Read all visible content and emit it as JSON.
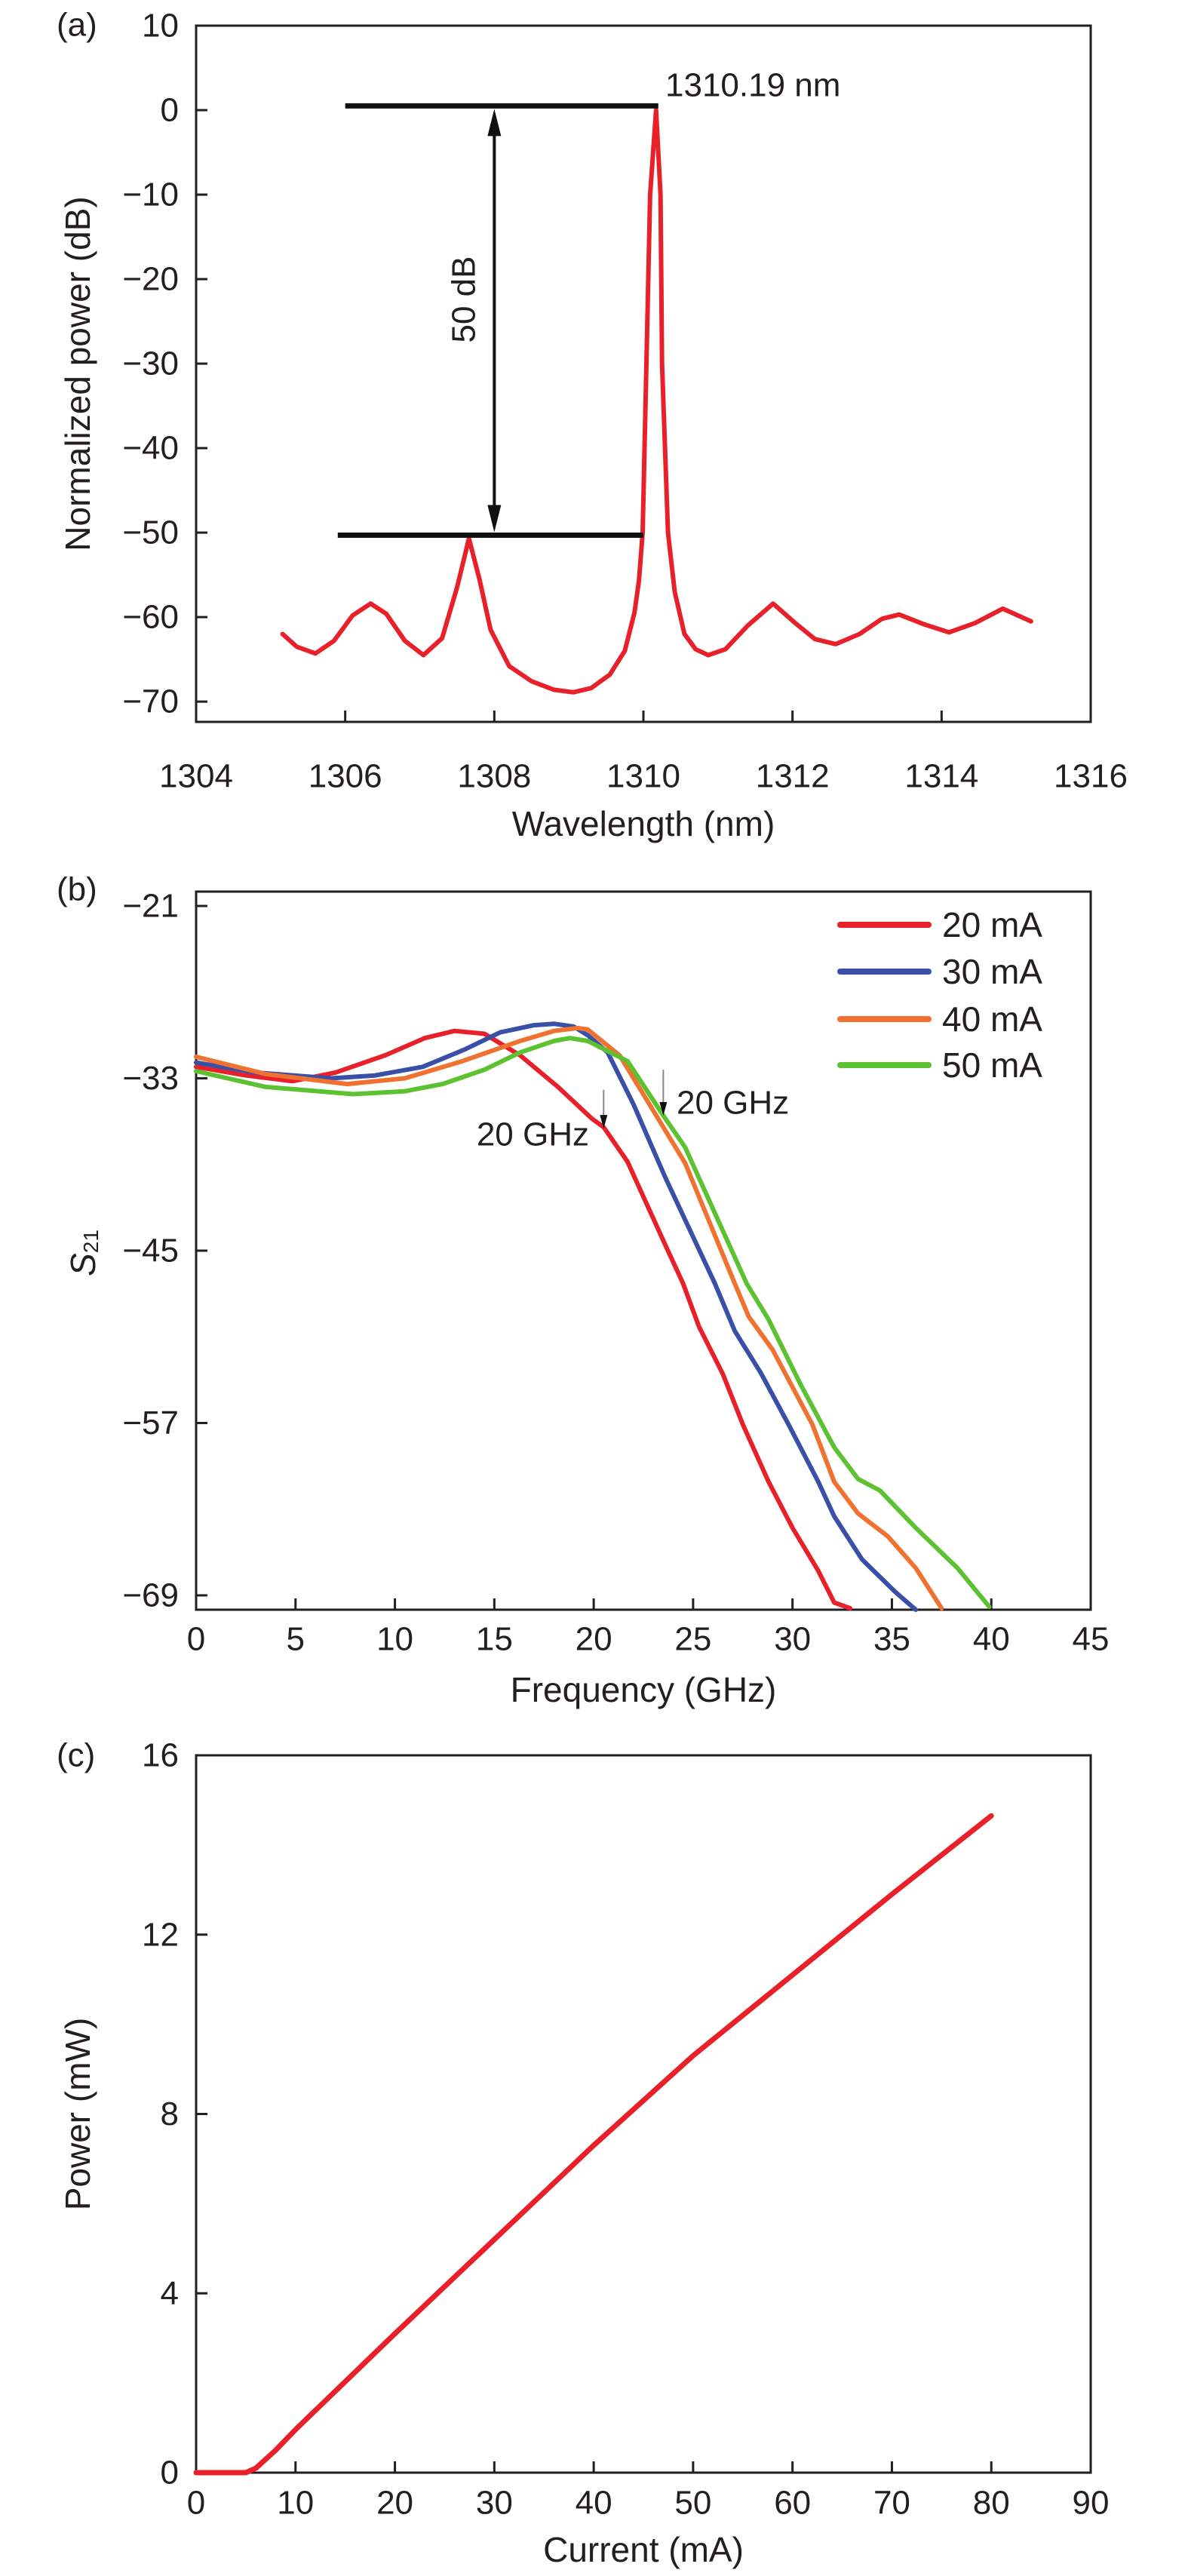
{
  "chart_data": [
    {
      "type": "line",
      "panel_label": "(a)",
      "xlabel": "Wavelength (nm)",
      "ylabel": "Normalized power (dB)",
      "xlim": [
        1304,
        1316
      ],
      "ylim": [
        -72.4,
        10
      ],
      "xticks": [
        1304,
        1306,
        1308,
        1310,
        1312,
        1314,
        1316
      ],
      "xtick_labels": [
        "1304",
        "1306",
        "1308",
        "1310",
        "1312",
        "1314",
        "1316"
      ],
      "yticks": [
        10,
        0,
        -10,
        -20,
        -30,
        -40,
        -50,
        -60,
        -70
      ],
      "ytick_labels": [
        "10",
        "0",
        "−10",
        "−20",
        "−30",
        "−40",
        "−50",
        "−60",
        "−70"
      ],
      "grid": false,
      "series": [
        {
          "color": "#e8202a",
          "points": [
            [
              1305.16,
              -62
            ],
            [
              1305.35,
              -63.5
            ],
            [
              1305.6,
              -64.3
            ],
            [
              1305.85,
              -62.8
            ],
            [
              1306.1,
              -59.8
            ],
            [
              1306.34,
              -58.4
            ],
            [
              1306.55,
              -59.6
            ],
            [
              1306.8,
              -62.8
            ],
            [
              1307.05,
              -64.5
            ],
            [
              1307.3,
              -62.5
            ],
            [
              1307.5,
              -56.5
            ],
            [
              1307.66,
              -50.7
            ],
            [
              1307.8,
              -55.5
            ],
            [
              1307.95,
              -61.5
            ],
            [
              1308.2,
              -65.8
            ],
            [
              1308.5,
              -67.6
            ],
            [
              1308.8,
              -68.6
            ],
            [
              1309.06,
              -68.9
            ],
            [
              1309.3,
              -68.4
            ],
            [
              1309.55,
              -66.8
            ],
            [
              1309.75,
              -64
            ],
            [
              1309.88,
              -59.5
            ],
            [
              1309.94,
              -55.7
            ],
            [
              1309.99,
              -50
            ],
            [
              1310.04,
              -30
            ],
            [
              1310.09,
              -10
            ],
            [
              1310.17,
              0
            ],
            [
              1310.23,
              -10
            ],
            [
              1310.25,
              -30
            ],
            [
              1310.33,
              -50
            ],
            [
              1310.42,
              -57
            ],
            [
              1310.55,
              -62
            ],
            [
              1310.7,
              -63.8
            ],
            [
              1310.87,
              -64.5
            ],
            [
              1311.1,
              -63.8
            ],
            [
              1311.4,
              -61
            ],
            [
              1311.74,
              -58.4
            ],
            [
              1312.05,
              -60.8
            ],
            [
              1312.3,
              -62.6
            ],
            [
              1312.58,
              -63.2
            ],
            [
              1312.9,
              -62
            ],
            [
              1313.2,
              -60.2
            ],
            [
              1313.43,
              -59.7
            ],
            [
              1313.75,
              -60.8
            ],
            [
              1314.1,
              -61.8
            ],
            [
              1314.45,
              -60.7
            ],
            [
              1314.82,
              -59
            ],
            [
              1315.2,
              -60.5
            ]
          ]
        }
      ],
      "annotations": {
        "peak_label": "1310.19 nm",
        "smsr_label": "50 dB",
        "ref_lines": [
          {
            "y": 0.5,
            "x": [
              1306,
              1310.2
            ]
          },
          {
            "y": -50.3,
            "x": [
              1305.9,
              1310.0
            ]
          }
        ],
        "arrow_x": 1308
      }
    },
    {
      "type": "line",
      "panel_label": "(b)",
      "xlabel": "Frequency (GHz)",
      "ylabel": "S",
      "ylabel_sub": "21",
      "xlim": [
        0,
        45
      ],
      "ylim": [
        -70,
        -20
      ],
      "xticks": [
        0,
        5,
        10,
        15,
        20,
        25,
        30,
        35,
        40,
        45
      ],
      "xtick_labels": [
        "0",
        "5",
        "10",
        "15",
        "20",
        "25",
        "30",
        "35",
        "40",
        "45"
      ],
      "yticks": [
        -21,
        -33,
        -45,
        -57,
        -69
      ],
      "ytick_labels": [
        "−21",
        "−33",
        "−45",
        "−57",
        "−69"
      ],
      "grid": false,
      "legend_position": "top-right",
      "series": [
        {
          "name": "20 mA",
          "color": "#e8202a",
          "points": [
            [
              0,
              -32.2
            ],
            [
              2.5,
              -32.8
            ],
            [
              4.85,
              -33.2
            ],
            [
              7,
              -32.6
            ],
            [
              9.5,
              -31.4
            ],
            [
              11.5,
              -30.2
            ],
            [
              13,
              -29.7
            ],
            [
              14.5,
              -29.9
            ],
            [
              16.3,
              -31.4
            ],
            [
              18.2,
              -33.6
            ],
            [
              19.9,
              -35.8
            ],
            [
              20.5,
              -36.4
            ],
            [
              21.7,
              -38.8
            ],
            [
              23.6,
              -44.6
            ],
            [
              24.5,
              -47.3
            ],
            [
              25.3,
              -50.3
            ],
            [
              26.5,
              -53.6
            ],
            [
              27.5,
              -57.1
            ],
            [
              28.8,
              -61.1
            ],
            [
              30,
              -64.3
            ],
            [
              31.3,
              -67.3
            ],
            [
              32.1,
              -69.5
            ],
            [
              32.9,
              -69.9
            ]
          ]
        },
        {
          "name": "30 mA",
          "color": "#3a4fa8",
          "points": [
            [
              0,
              -31.9
            ],
            [
              3,
              -32.6
            ],
            [
              6.8,
              -33
            ],
            [
              9,
              -32.8
            ],
            [
              11.4,
              -32.2
            ],
            [
              13.5,
              -31
            ],
            [
              15.3,
              -29.8
            ],
            [
              17,
              -29.3
            ],
            [
              18,
              -29.2
            ],
            [
              19,
              -29.4
            ],
            [
              19.7,
              -30
            ],
            [
              20.7,
              -31.2
            ],
            [
              22,
              -34.8
            ],
            [
              23.6,
              -39.9
            ],
            [
              26.1,
              -47.3
            ],
            [
              27.1,
              -50.6
            ],
            [
              28.4,
              -53.5
            ],
            [
              29.8,
              -57.1
            ],
            [
              31.3,
              -61.1
            ],
            [
              32.1,
              -63.5
            ],
            [
              33.5,
              -66.5
            ],
            [
              35.2,
              -68.8
            ],
            [
              36.2,
              -70
            ]
          ]
        },
        {
          "name": "40 mA",
          "color": "#f07230",
          "points": [
            [
              0,
              -31.5
            ],
            [
              3.5,
              -32.7
            ],
            [
              7.6,
              -33.4
            ],
            [
              10.5,
              -33
            ],
            [
              13.4,
              -31.8
            ],
            [
              16.3,
              -30.4
            ],
            [
              18,
              -29.7
            ],
            [
              19.2,
              -29.5
            ],
            [
              19.7,
              -29.6
            ],
            [
              21.3,
              -31.4
            ],
            [
              22.8,
              -34.8
            ],
            [
              24.6,
              -38.9
            ],
            [
              27.1,
              -47.3
            ],
            [
              27.8,
              -49.6
            ],
            [
              29,
              -51.9
            ],
            [
              31,
              -57.1
            ],
            [
              32.1,
              -61.1
            ],
            [
              33.3,
              -63.3
            ],
            [
              34.8,
              -64.9
            ],
            [
              36.2,
              -67.1
            ],
            [
              37.5,
              -69.9
            ]
          ]
        },
        {
          "name": "50 mA",
          "color": "#5cc232",
          "points": [
            [
              0,
              -32.5
            ],
            [
              3.5,
              -33.6
            ],
            [
              7.9,
              -34.1
            ],
            [
              10.5,
              -33.9
            ],
            [
              12.4,
              -33.4
            ],
            [
              14.5,
              -32.4
            ],
            [
              16.3,
              -31.2
            ],
            [
              18,
              -30.4
            ],
            [
              18.8,
              -30.2
            ],
            [
              19.7,
              -30.4
            ],
            [
              21.7,
              -31.8
            ],
            [
              23.6,
              -35.8
            ],
            [
              24.6,
              -37.8
            ],
            [
              27.7,
              -47.3
            ],
            [
              28.8,
              -49.8
            ],
            [
              30.4,
              -54.3
            ],
            [
              32.1,
              -58.7
            ],
            [
              33.3,
              -60.9
            ],
            [
              34.4,
              -61.7
            ],
            [
              36.2,
              -64.3
            ],
            [
              38.3,
              -67.1
            ],
            [
              39.9,
              -69.8
            ]
          ]
        }
      ],
      "annotations": [
        {
          "text": "20 GHz",
          "arrow_x": 20.5,
          "arrow_y": [
            -33.8,
            -36.5
          ]
        },
        {
          "text": "20 GHz",
          "arrow_x": 23.5,
          "arrow_y": [
            -32.4,
            -35.6
          ]
        }
      ]
    },
    {
      "type": "line",
      "panel_label": "(c)",
      "xlabel": "Current (mA)",
      "ylabel": "Power (mW)",
      "xlim": [
        0,
        90
      ],
      "ylim": [
        0,
        16
      ],
      "xticks": [
        0,
        10,
        20,
        30,
        40,
        50,
        60,
        70,
        80,
        90
      ],
      "xtick_labels": [
        "0",
        "10",
        "20",
        "30",
        "40",
        "50",
        "60",
        "70",
        "80",
        "90"
      ],
      "yticks": [
        0,
        4,
        8,
        12,
        16
      ],
      "ytick_labels": [
        "0",
        "4",
        "8",
        "12",
        "16"
      ],
      "grid": false,
      "series": [
        {
          "color": "#e8202a",
          "points": [
            [
              0,
              0
            ],
            [
              5,
              0
            ],
            [
              6,
              0.1
            ],
            [
              8,
              0.5
            ],
            [
              10,
              0.96
            ],
            [
              20,
              3.1
            ],
            [
              30,
              5.2
            ],
            [
              40,
              7.3
            ],
            [
              50,
              9.3
            ],
            [
              60,
              11.1
            ],
            [
              70,
              12.9
            ],
            [
              80,
              14.65
            ]
          ]
        }
      ]
    }
  ]
}
